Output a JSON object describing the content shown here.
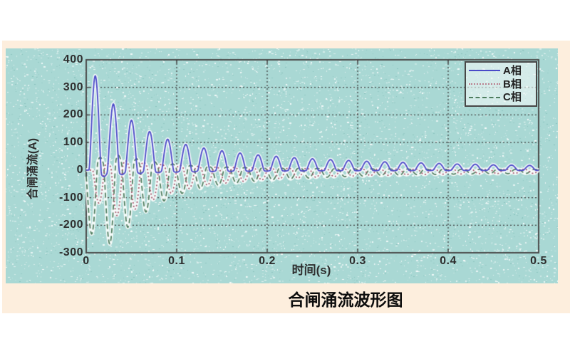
{
  "figure": {
    "caption": "合闸涌流波形图"
  },
  "chart_data": {
    "type": "line",
    "title": "合闸涌流波形图",
    "xlabel": "时间(s)",
    "ylabel": "合闸涌流(A)",
    "xlim": [
      0,
      0.5
    ],
    "ylim": [
      -300,
      400
    ],
    "xticks": [
      "0",
      "0.1",
      "0.2",
      "0.3",
      "0.4",
      "0.5"
    ],
    "yticks": [
      "400",
      "300",
      "200",
      "100",
      "0",
      "-100",
      "-200",
      "-300"
    ],
    "grid": true,
    "legend_position": "top-right",
    "peak_period_s": 0.02,
    "description": "Decaying three-phase transformer closing inrush current; spiky peaks every 0.02 s",
    "series": [
      {
        "name": "A相",
        "color": "#4a4ac8",
        "style": "solid",
        "first_peak_t": 0.01,
        "peak_values": [
          342,
          240,
          181,
          140,
          112,
          93,
          80,
          70,
          62,
          55,
          50,
          45,
          41,
          38,
          35,
          32,
          30,
          28,
          26,
          24,
          22,
          21,
          19,
          18,
          17
        ]
      },
      {
        "name": "B相",
        "color": "#a3556a",
        "style": "dotted",
        "first_peak_t": 0.014,
        "peak_values": [
          -120,
          -165,
          -142,
          -108,
          -84,
          -67,
          -55,
          -47,
          -41,
          -36,
          -32,
          -29,
          -26,
          -24,
          -22,
          -20,
          -19,
          -17,
          -16,
          -15,
          -14,
          -13,
          -13,
          -12,
          -12
        ]
      },
      {
        "name": "C相",
        "color": "#4e7d5e",
        "style": "dashed",
        "first_peak_t": 0.006,
        "peak_values": [
          -232,
          -268,
          -208,
          -152,
          -112,
          -85,
          -67,
          -55,
          -47,
          -41,
          -36,
          -32,
          -29,
          -26,
          -24,
          -22,
          -20,
          -19,
          -17,
          -16,
          -15,
          -14,
          -13,
          -13,
          -12
        ]
      }
    ],
    "colors": {
      "panel_bg": "#fdeedd",
      "plot_bg": "#a9d8d4",
      "grid": "#3c3c3c",
      "axis": "#4a4a4a",
      "tick_text": "#2e2e2e"
    }
  }
}
